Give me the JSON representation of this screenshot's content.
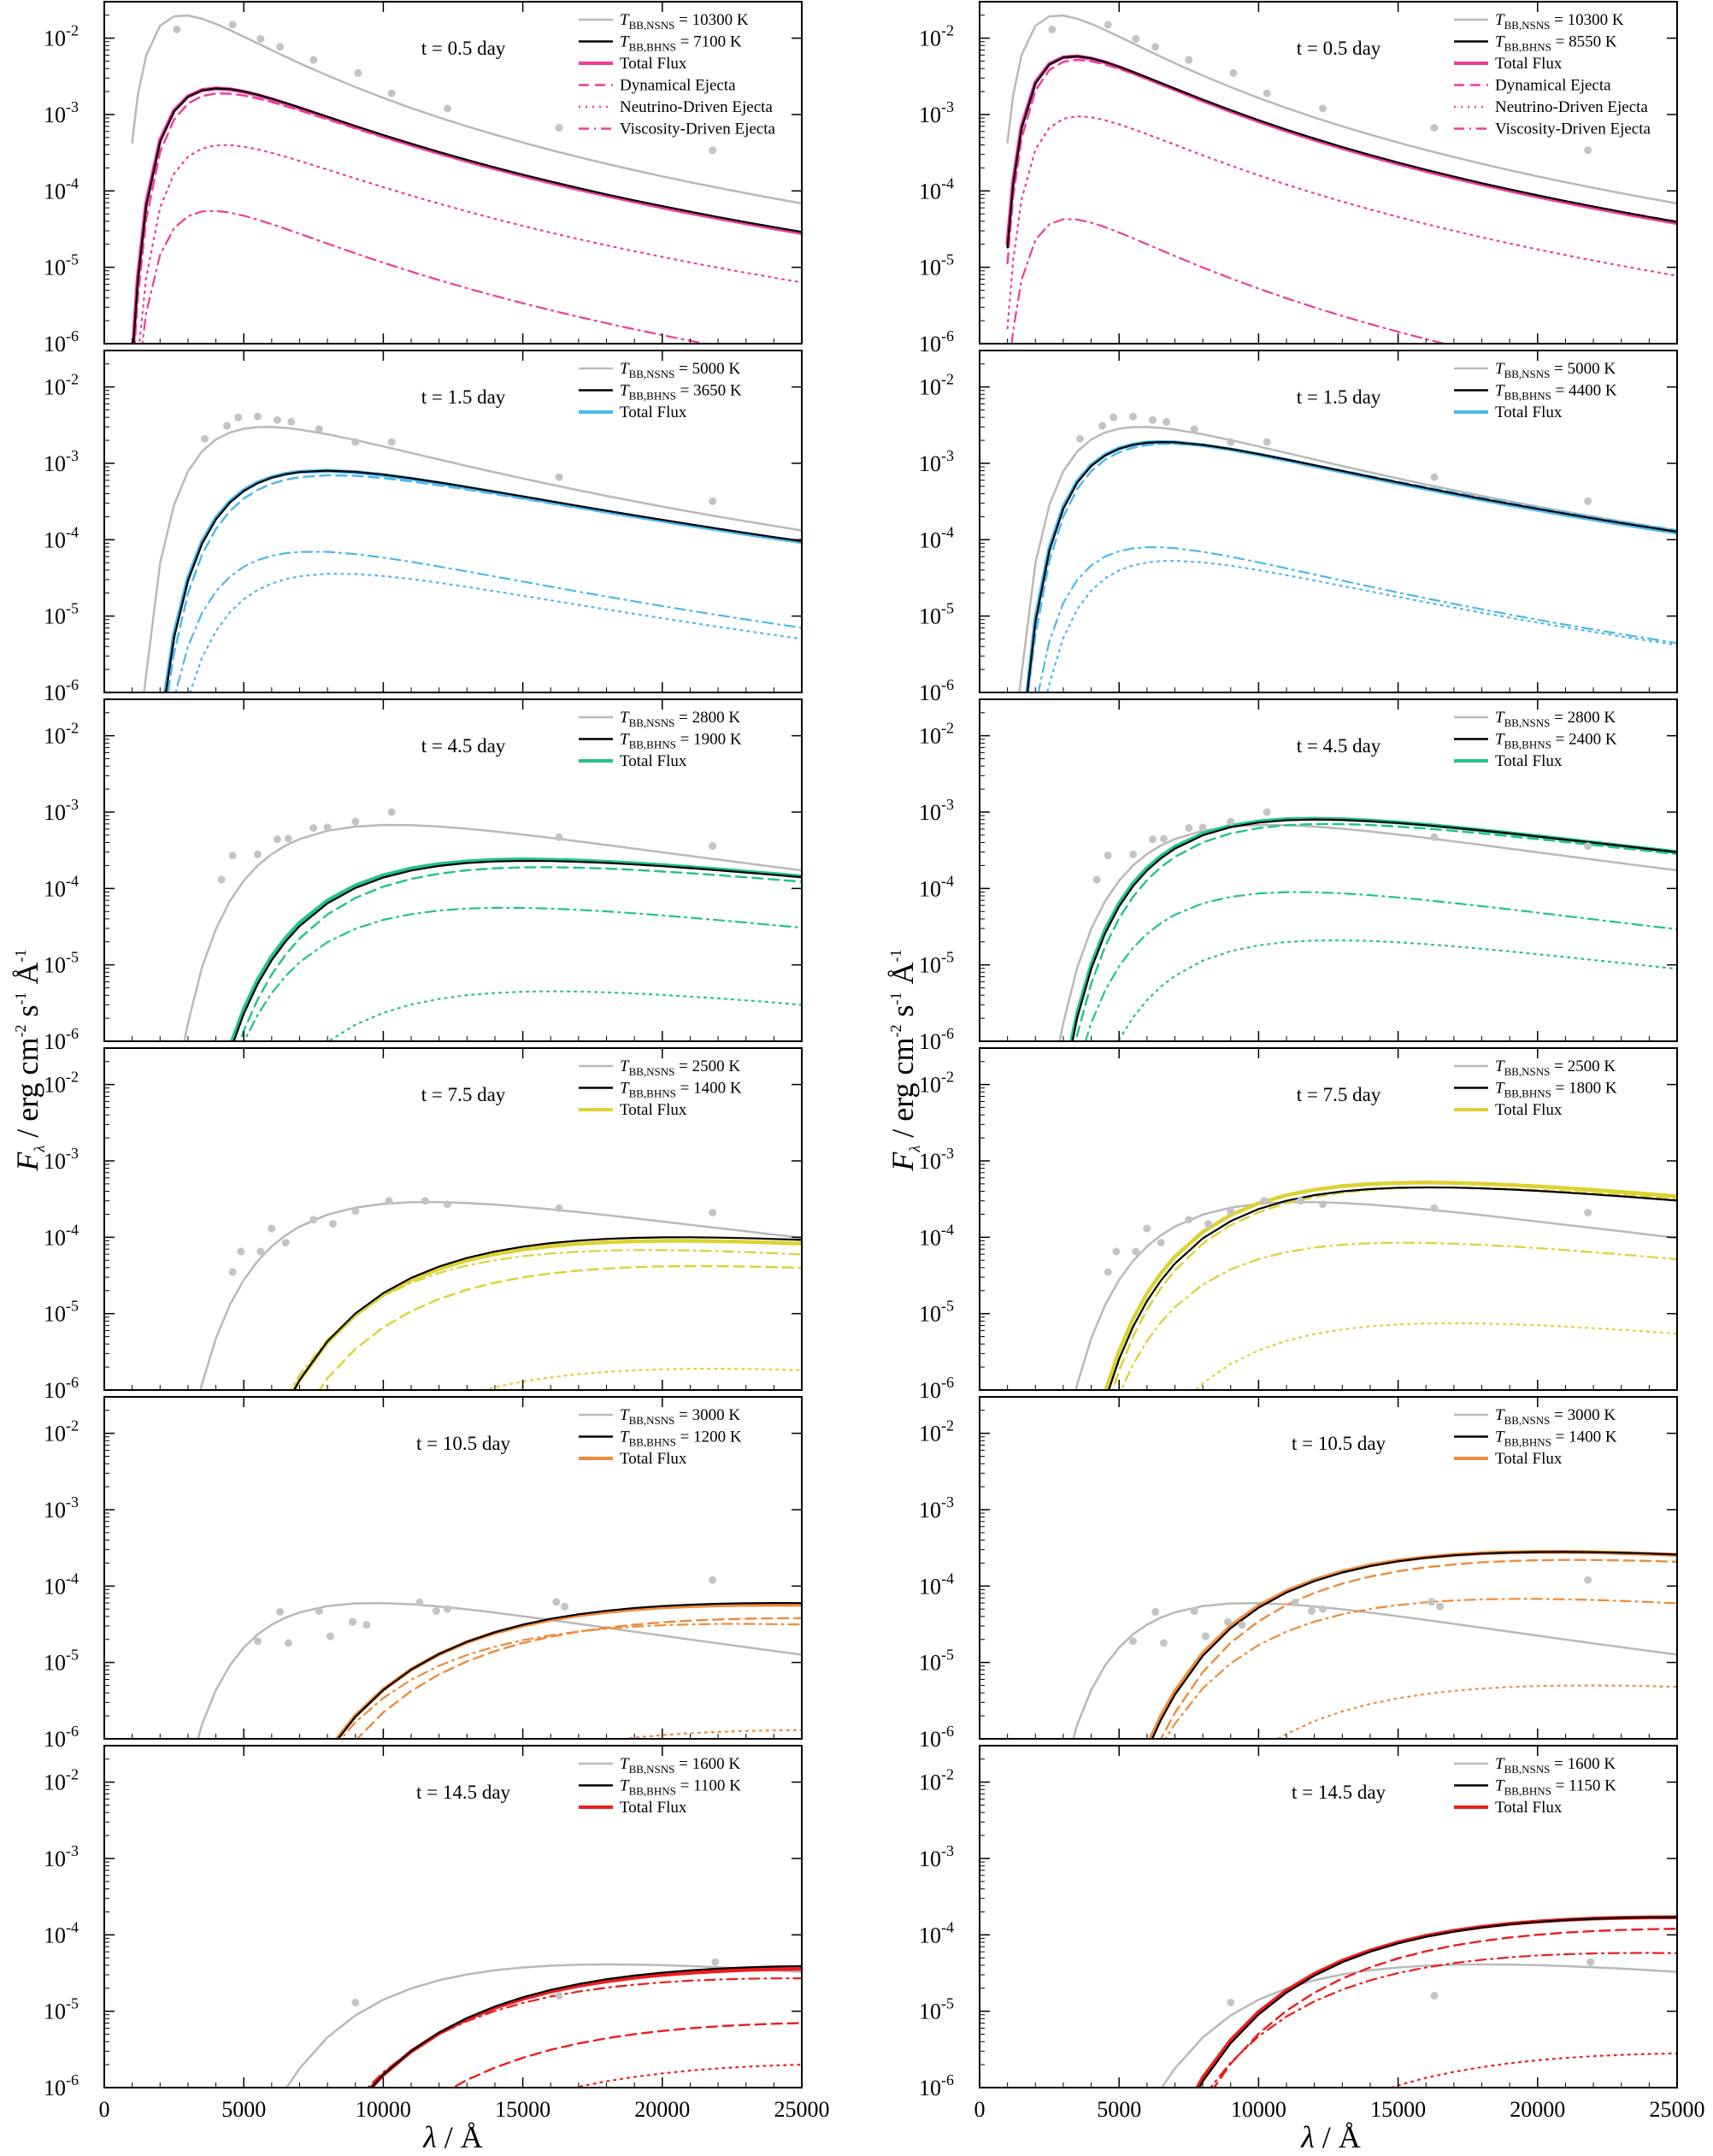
{
  "figure": {
    "ylabel": "F_λ / erg cm^-2 s^-1 Å^-1",
    "xlabel": "λ / Å"
  },
  "chart_data": {
    "type": "line",
    "x_scale": "linear",
    "y_scale": "log",
    "xlim": [
      0,
      25000
    ],
    "ylim": [
      1e-06,
      0.03
    ],
    "x_ticks": [
      0,
      5000,
      10000,
      15000,
      20000,
      25000
    ],
    "y_ticks": [
      {
        "base": "10",
        "exp": "-6"
      },
      {
        "base": "10",
        "exp": "-5"
      },
      {
        "base": "10",
        "exp": "-4"
      },
      {
        "base": "10",
        "exp": "-3"
      },
      {
        "base": "10",
        "exp": "-2"
      }
    ],
    "legend_placement": "top-right",
    "line_styles": {
      "total": "solid",
      "dyn": "dashed",
      "nu": "dotted",
      "vis": "dash-dot"
    },
    "colors": {
      "nsns": "#b9b9b9",
      "bhns": "#000000",
      "pink": "#f03c9a",
      "blue": "#4cb8ec",
      "green": "#21c38a",
      "yellow": "#dcd232",
      "orange": "#ef8a3a",
      "red": "#ee1c1c"
    },
    "series_labels": {
      "total": "Total Flux",
      "dyn": "Dynamical Ejecta",
      "nu": "Neutrino-Driven Ejecta",
      "vis": "Viscosity-Driven Ejecta"
    },
    "x_grid": [
      1000,
      1200,
      1500,
      2000,
      2500,
      3000,
      3500,
      4000,
      4500,
      5000,
      5500,
      6000,
      6500,
      7000,
      8000,
      9000,
      10000,
      11000,
      12000,
      13000,
      14000,
      15000,
      16000,
      17000,
      18000,
      19000,
      20000,
      21000,
      22000,
      23000,
      24000,
      25000
    ],
    "panels": [
      {
        "col": 0,
        "row": 0,
        "time": "t = 0.5 day",
        "color_key": "pink",
        "legend_items": [
          "total",
          "dyn",
          "nu",
          "vis"
        ],
        "nsns_label": "= 10300 K",
        "bhns_label": "= 7100 K",
        "T_nsns": 10300,
        "T_bhns": 7100,
        "peak_nsns": 0.02,
        "peak_bhns": 0.0022,
        "total_peak": 0.0022,
        "dyn_peak": 0.0019,
        "nu_peak": 0.0004,
        "vis_peak": 5.5e-05,
        "obs": [
          [
            2600,
            0.013
          ],
          [
            4600,
            0.015
          ],
          [
            5600,
            0.0098
          ],
          [
            6300,
            0.0077
          ],
          [
            7500,
            0.0052
          ],
          [
            9100,
            0.0035
          ],
          [
            10300,
            0.0019
          ],
          [
            12300,
            0.0012
          ],
          [
            16300,
            0.00067
          ],
          [
            21800,
            0.00034
          ]
        ]
      },
      {
        "col": 1,
        "row": 0,
        "time": "t = 0.5 day",
        "color_key": "pink",
        "legend_items": [
          "total",
          "dyn",
          "nu",
          "vis"
        ],
        "nsns_label": "= 10300 K",
        "bhns_label": "= 8550 K",
        "T_nsns": 10300,
        "T_bhns": 8550,
        "peak_nsns": 0.02,
        "peak_bhns": 0.0058,
        "total_peak": 0.0058,
        "dyn_peak": 0.0052,
        "nu_peak": 0.00095,
        "vis_peak": 4.3e-05,
        "obs": [
          [
            2600,
            0.013
          ],
          [
            4600,
            0.015
          ],
          [
            5600,
            0.0098
          ],
          [
            6300,
            0.0077
          ],
          [
            7500,
            0.0052
          ],
          [
            9100,
            0.0035
          ],
          [
            10300,
            0.0019
          ],
          [
            12300,
            0.0012
          ],
          [
            16300,
            0.00067
          ],
          [
            21800,
            0.00034
          ]
        ]
      },
      {
        "col": 0,
        "row": 1,
        "time": "t = 1.5 day",
        "color_key": "blue",
        "legend_items": [
          "total"
        ],
        "nsns_label": "= 5000 K",
        "bhns_label": "= 3650 K",
        "T_nsns": 5000,
        "T_bhns": 3650,
        "peak_nsns": 0.003,
        "peak_bhns": 0.0008,
        "total_peak": 0.0008,
        "dyn_peak": 0.0007,
        "nu_peak": 3.6e-05,
        "vis_peak": 7e-05,
        "obs": [
          [
            3600,
            0.0021
          ],
          [
            4400,
            0.0031
          ],
          [
            4800,
            0.004
          ],
          [
            5500,
            0.0041
          ],
          [
            6200,
            0.0037
          ],
          [
            6700,
            0.0035
          ],
          [
            7700,
            0.0028
          ],
          [
            9000,
            0.0019
          ],
          [
            10300,
            0.0019
          ],
          [
            16300,
            0.00066
          ],
          [
            21800,
            0.00032
          ]
        ]
      },
      {
        "col": 1,
        "row": 1,
        "time": "t = 1.5 day",
        "color_key": "blue",
        "legend_items": [
          "total"
        ],
        "nsns_label": "= 5000 K",
        "bhns_label": "= 4400 K",
        "T_nsns": 5000,
        "T_bhns": 4400,
        "peak_nsns": 0.003,
        "peak_bhns": 0.0019,
        "total_peak": 0.0019,
        "dyn_peak": 0.0018,
        "nu_peak": 5.3e-05,
        "vis_peak": 8e-05,
        "obs": [
          [
            3600,
            0.0021
          ],
          [
            4400,
            0.0031
          ],
          [
            4800,
            0.004
          ],
          [
            5500,
            0.0041
          ],
          [
            6200,
            0.0037
          ],
          [
            6700,
            0.0035
          ],
          [
            7700,
            0.0028
          ],
          [
            9000,
            0.0019
          ],
          [
            10300,
            0.0019
          ],
          [
            16300,
            0.00066
          ],
          [
            21800,
            0.00032
          ]
        ]
      },
      {
        "col": 0,
        "row": 2,
        "time": "t = 4.5 day",
        "color_key": "green",
        "legend_items": [
          "total"
        ],
        "nsns_label": "= 2800 K",
        "bhns_label": "= 1900 K",
        "T_nsns": 2800,
        "T_bhns": 1900,
        "peak_nsns": 0.00068,
        "peak_bhns": 0.00023,
        "total_peak": 0.00024,
        "dyn_peak": 0.00019,
        "nu_peak": 4.5e-06,
        "vis_peak": 5.6e-05,
        "obs": [
          [
            4200,
            0.00013
          ],
          [
            4600,
            0.00027
          ],
          [
            5500,
            0.00028
          ],
          [
            6200,
            0.00044
          ],
          [
            6600,
            0.00045
          ],
          [
            7500,
            0.00062
          ],
          [
            8000,
            0.00063
          ],
          [
            9000,
            0.00075
          ],
          [
            10300,
            0.001
          ],
          [
            16300,
            0.00047
          ],
          [
            21800,
            0.00036
          ]
        ]
      },
      {
        "col": 1,
        "row": 2,
        "time": "t = 4.5 day",
        "color_key": "green",
        "legend_items": [
          "total"
        ],
        "nsns_label": "= 2800 K",
        "bhns_label": "= 2400 K",
        "T_nsns": 2800,
        "T_bhns": 2400,
        "peak_nsns": 0.00068,
        "peak_bhns": 0.0008,
        "total_peak": 0.00082,
        "dyn_peak": 0.0007,
        "nu_peak": 2.1e-05,
        "vis_peak": 9e-05,
        "obs": [
          [
            4200,
            0.00013
          ],
          [
            4600,
            0.00027
          ],
          [
            5500,
            0.00028
          ],
          [
            6200,
            0.00044
          ],
          [
            6600,
            0.00045
          ],
          [
            7500,
            0.00062
          ],
          [
            8000,
            0.00063
          ],
          [
            9000,
            0.00075
          ],
          [
            10300,
            0.001
          ],
          [
            16300,
            0.00047
          ],
          [
            21800,
            0.00036
          ]
        ]
      },
      {
        "col": 0,
        "row": 3,
        "time": "t = 7.5 day",
        "color_key": "yellow",
        "legend_items": [
          "total"
        ],
        "nsns_label": "= 2500 K",
        "bhns_label": "= 1400 K",
        "T_nsns": 2500,
        "T_bhns": 1400,
        "peak_nsns": 0.00029,
        "peak_bhns": 0.0001,
        "total_peak": 9e-05,
        "dyn_peak": 4.2e-05,
        "nu_peak": 1.9e-06,
        "vis_peak": 6.8e-05,
        "obs": [
          [
            4600,
            3.5e-05
          ],
          [
            4900,
            6.5e-05
          ],
          [
            5600,
            6.5e-05
          ],
          [
            6000,
            0.00013
          ],
          [
            6500,
            8.5e-05
          ],
          [
            7500,
            0.00017
          ],
          [
            8200,
            0.00015
          ],
          [
            9000,
            0.00022
          ],
          [
            10200,
            0.0003
          ],
          [
            11500,
            0.0003
          ],
          [
            12300,
            0.00027
          ],
          [
            16300,
            0.00024
          ],
          [
            21800,
            0.00021
          ]
        ]
      },
      {
        "col": 1,
        "row": 3,
        "time": "t = 7.5 day",
        "color_key": "yellow",
        "legend_items": [
          "total"
        ],
        "nsns_label": "= 2500 K",
        "bhns_label": "= 1800 K",
        "T_nsns": 2500,
        "T_bhns": 1800,
        "peak_nsns": 0.00029,
        "peak_bhns": 0.00045,
        "total_peak": 0.00052,
        "dyn_peak": 0.00045,
        "nu_peak": 7.5e-06,
        "vis_peak": 8.5e-05,
        "obs": [
          [
            4600,
            3.5e-05
          ],
          [
            4900,
            6.5e-05
          ],
          [
            5600,
            6.5e-05
          ],
          [
            6000,
            0.00013
          ],
          [
            6500,
            8.5e-05
          ],
          [
            7500,
            0.00017
          ],
          [
            8200,
            0.00015
          ],
          [
            9000,
            0.00022
          ],
          [
            10200,
            0.0003
          ],
          [
            11500,
            0.0003
          ],
          [
            12300,
            0.00027
          ],
          [
            16300,
            0.00024
          ],
          [
            21800,
            0.00021
          ]
        ]
      },
      {
        "col": 0,
        "row": 4,
        "time": "t = 10.5 day",
        "color_key": "orange",
        "legend_items": [
          "total"
        ],
        "nsns_label": "= 3000 K",
        "bhns_label": "= 1200 K",
        "T_nsns": 3000,
        "T_bhns": 1200,
        "peak_nsns": 6e-05,
        "peak_bhns": 6e-05,
        "total_peak": 5.7e-05,
        "dyn_peak": 3.8e-05,
        "nu_peak": 1.3e-06,
        "vis_peak": 3.2e-05,
        "obs": [
          [
            5500,
            1.9e-05
          ],
          [
            6300,
            4.6e-05
          ],
          [
            6600,
            1.8e-05
          ],
          [
            7700,
            4.7e-05
          ],
          [
            8100,
            2.2e-05
          ],
          [
            8900,
            3.4e-05
          ],
          [
            9400,
            3.1e-05
          ],
          [
            11300,
            6.1e-05
          ],
          [
            11900,
            4.7e-05
          ],
          [
            12300,
            5e-05
          ],
          [
            16200,
            6.2e-05
          ],
          [
            16500,
            5.4e-05
          ],
          [
            21800,
            0.00012
          ]
        ]
      },
      {
        "col": 1,
        "row": 4,
        "time": "t = 10.5 day",
        "color_key": "orange",
        "legend_items": [
          "total"
        ],
        "nsns_label": "= 3000 K",
        "bhns_label": "= 1400 K",
        "T_nsns": 3000,
        "T_bhns": 1400,
        "peak_nsns": 6e-05,
        "peak_bhns": 0.00028,
        "total_peak": 0.00028,
        "dyn_peak": 0.00022,
        "nu_peak": 5e-06,
        "vis_peak": 6.8e-05,
        "obs": [
          [
            5500,
            1.9e-05
          ],
          [
            6300,
            4.6e-05
          ],
          [
            6600,
            1.8e-05
          ],
          [
            7700,
            4.7e-05
          ],
          [
            8100,
            2.2e-05
          ],
          [
            8900,
            3.4e-05
          ],
          [
            9400,
            3.1e-05
          ],
          [
            11300,
            6.1e-05
          ],
          [
            11900,
            4.7e-05
          ],
          [
            12300,
            5e-05
          ],
          [
            16200,
            6.2e-05
          ],
          [
            16500,
            5.4e-05
          ],
          [
            21800,
            0.00012
          ]
        ]
      },
      {
        "col": 0,
        "row": 5,
        "time": "t = 14.5 day",
        "color_key": "red",
        "legend_items": [
          "total"
        ],
        "nsns_label": "= 1600 K",
        "bhns_label": "= 1100 K",
        "T_nsns": 1600,
        "T_bhns": 1100,
        "peak_nsns": 4.1e-05,
        "peak_bhns": 3.9e-05,
        "total_peak": 3.6e-05,
        "dyn_peak": 7e-06,
        "nu_peak": 2e-06,
        "vis_peak": 2.7e-05,
        "obs": [
          [
            9000,
            1.3e-05
          ],
          [
            16300,
            1.6e-05
          ],
          [
            21900,
            4.4e-05
          ]
        ]
      },
      {
        "col": 1,
        "row": 5,
        "time": "t = 14.5 day",
        "color_key": "red",
        "legend_items": [
          "total"
        ],
        "nsns_label": "= 1600 K",
        "bhns_label": "= 1150 K",
        "T_nsns": 1600,
        "T_bhns": 1150,
        "peak_nsns": 4.1e-05,
        "peak_bhns": 0.00017,
        "total_peak": 0.00017,
        "dyn_peak": 0.00012,
        "nu_peak": 2.8e-06,
        "vis_peak": 5.8e-05,
        "obs": [
          [
            9000,
            1.3e-05
          ],
          [
            16300,
            1.6e-05
          ],
          [
            21900,
            4.4e-05
          ]
        ]
      }
    ]
  }
}
